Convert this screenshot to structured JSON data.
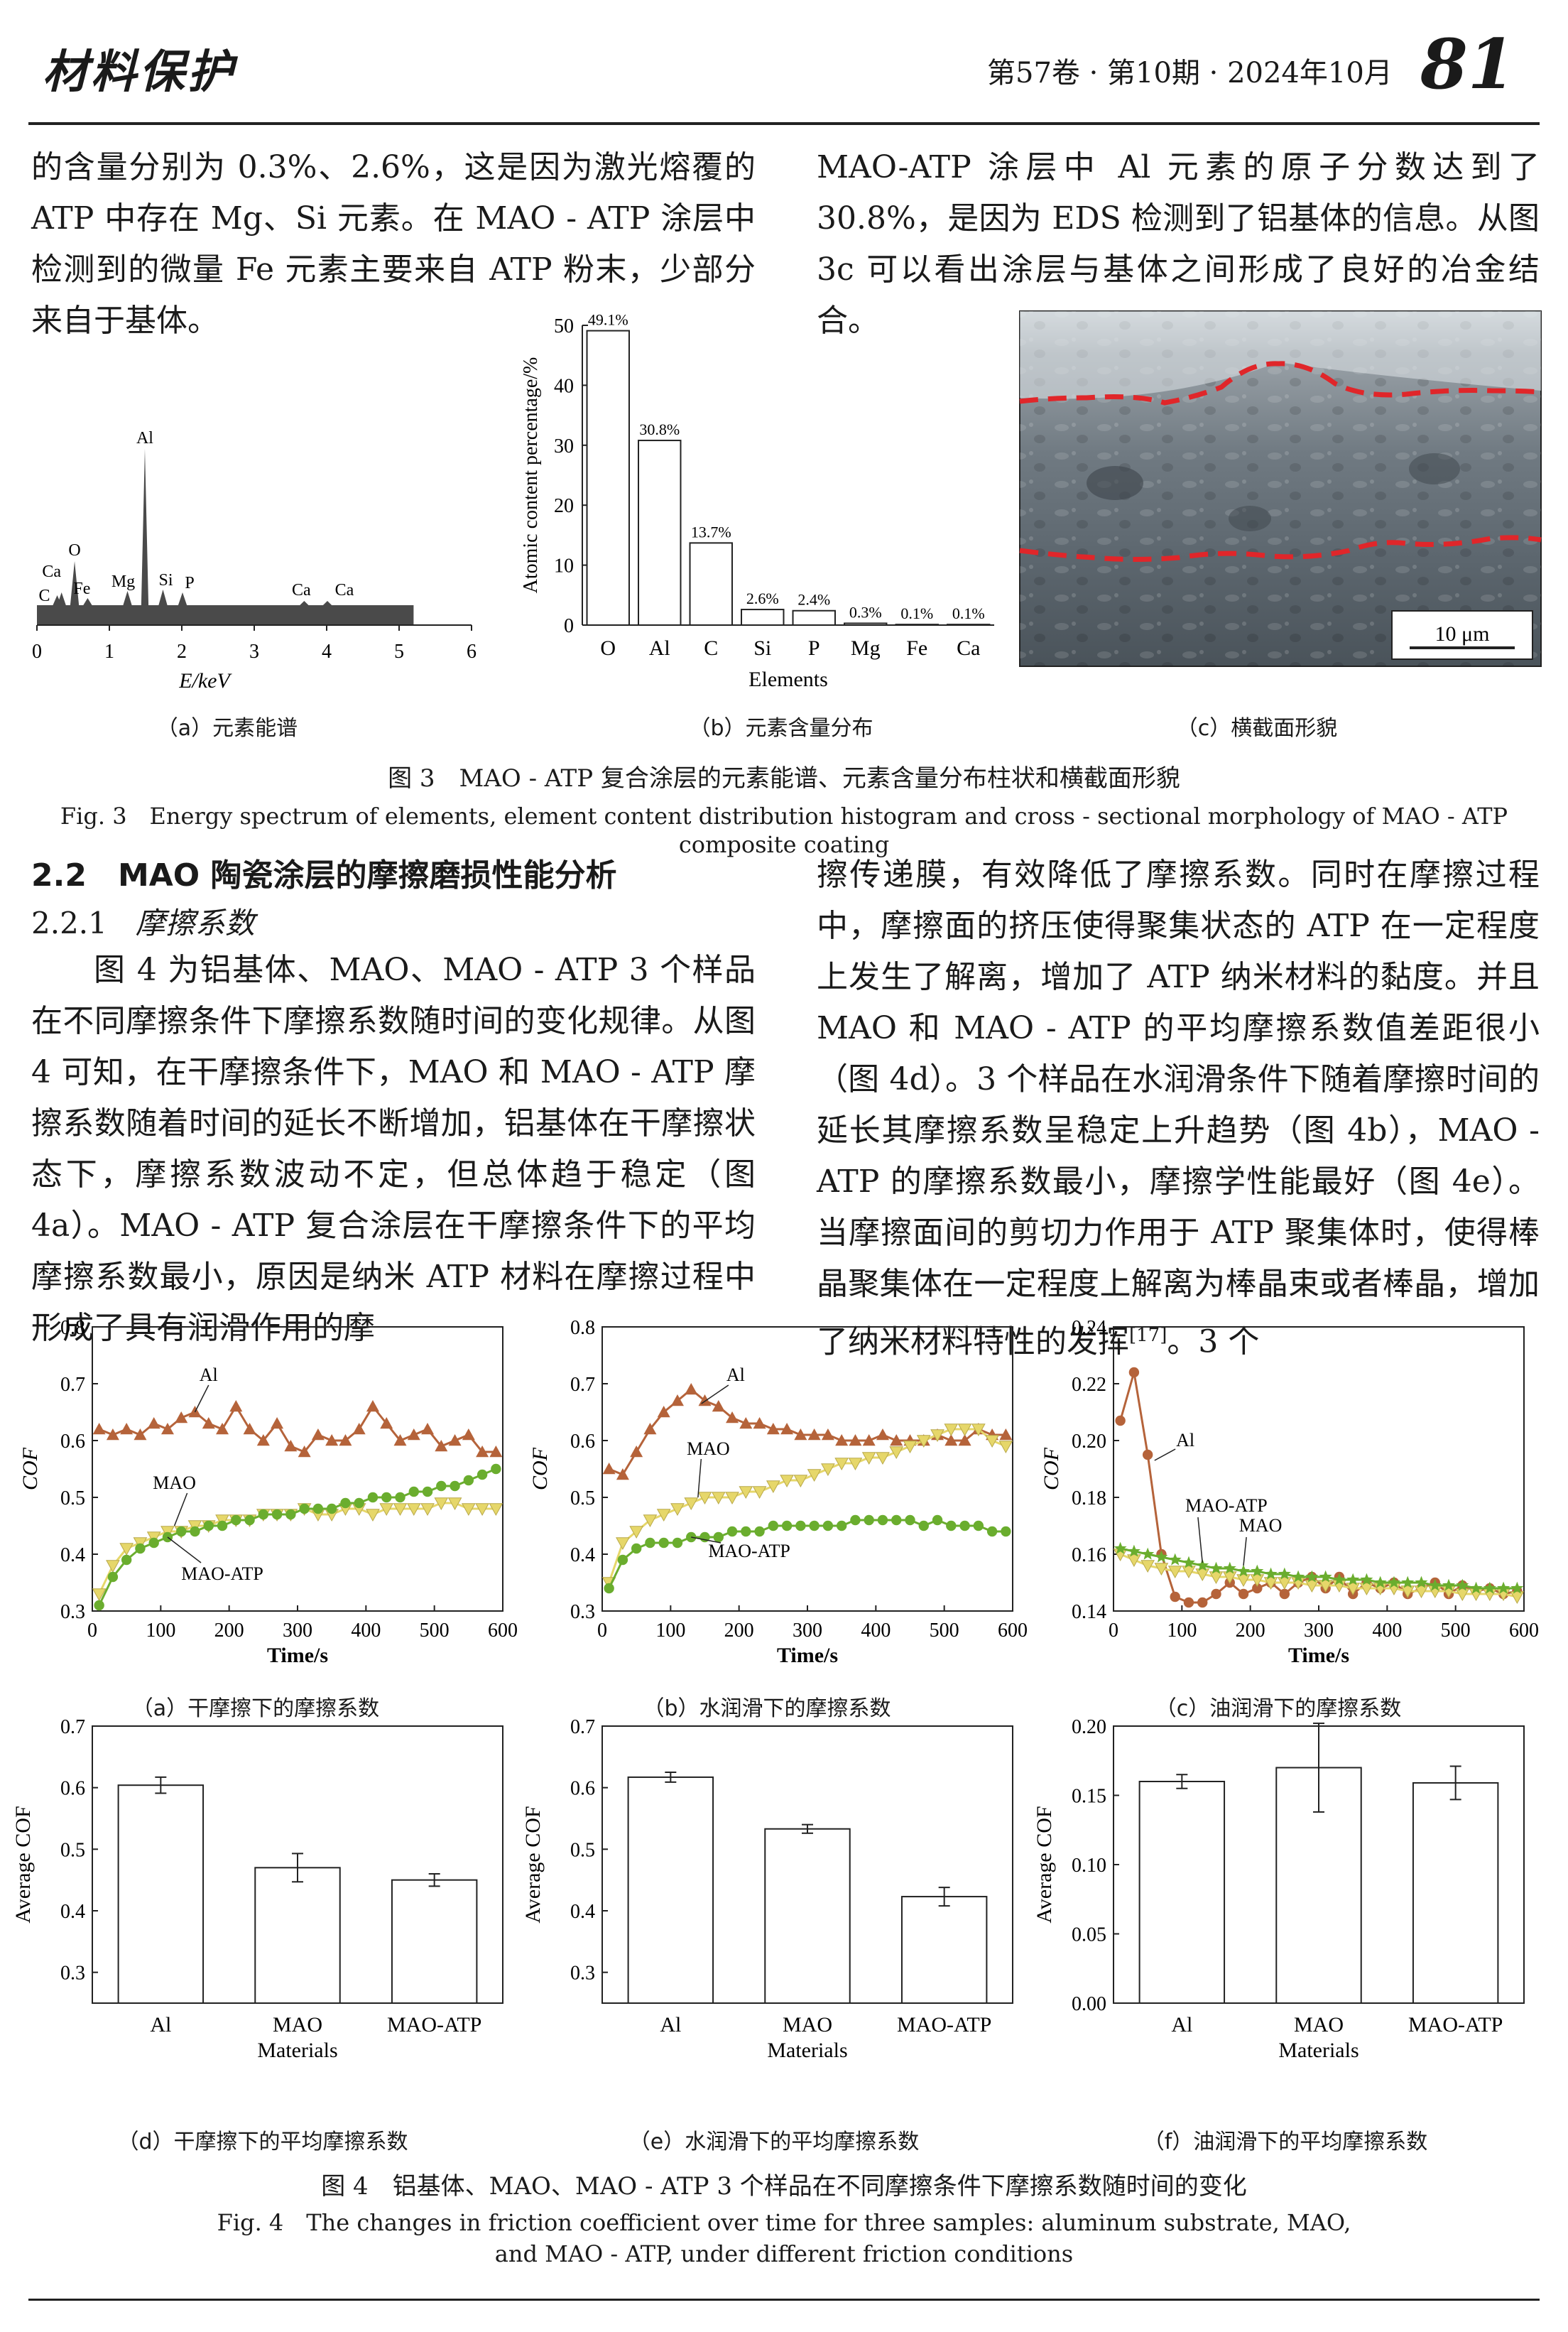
{
  "header": {
    "journal": "材料保护",
    "issue": "第57卷 · 第10期 · 2024年10月",
    "page": "81"
  },
  "top_text": {
    "left": "的含量分别为 0.3%、2.6%，这是因为激光熔覆的 ATP 中存在 Mg、Si 元素。在 MAO - ATP 涂层中检测到的微量 Fe 元素主要来自 ATP 粉末，少部分来自于基体。",
    "right": "MAO-ATP 涂层中 Al 元素的原子分数达到了 30.8%，是因为 EDS 检测到了铝基体的信息。从图 3c 可以看出涂层与基体之间形成了良好的冶金结合。"
  },
  "fig3": {
    "sub_a": "（a）元素能谱",
    "sub_b": "（b）元素含量分布",
    "sub_c": "（c）横截面形貌",
    "caption_cn": "图 3　MAO - ATP 复合涂层的元素能谱、元素含量分布柱状和横截面形貌",
    "caption_en": "Fig. 3　Energy spectrum of elements, element content distribution histogram and cross - sectional morphology of MAO - ATP composite coating",
    "scale_bar": "10 μm"
  },
  "section": {
    "h2": "2.2　MAO 陶瓷涂层的摩擦磨损性能分析",
    "h3_num": "2.2.1",
    "h3_title": "摩擦系数"
  },
  "mid_text": {
    "left": "图 4 为铝基体、MAO、MAO - ATP 3 个样品在不同摩擦条件下摩擦系数随时间的变化规律。从图 4 可知，在干摩擦条件下，MAO 和 MAO - ATP 摩擦系数随着时间的延长不断增加，铝基体在干摩擦状态下，摩擦系数波动不定，但总体趋于稳定（图 4a）。MAO - ATP 复合涂层在干摩擦条件下的平均摩擦系数最小，原因是纳米 ATP 材料在摩擦过程中形成了具有润滑作用的摩",
    "right_a": "擦传递膜，有效降低了摩擦系数。同时在摩擦过程中，摩擦面的挤压使得聚集状态的 ATP 在一定程度上发生了解离，增加了 ATP 纳米材料的黏度。并且 MAO 和 MAO - ATP 的平均摩擦系数值差距很小（图 4d）。3 个样品在水润滑条件下随着摩擦时间的延长其摩擦系数呈稳定上升趋势（图 4b），MAO - ATP 的摩擦系数最小，摩擦学性能最好（图 4e）。当摩擦面间的剪切力作用于 ATP 聚集体时，使得棒晶聚集体在一定程度上解离为棒晶束或者棒晶，增加了纳米材料特性的发挥",
    "right_ref": "[17]",
    "right_b": "。3 个"
  },
  "fig4": {
    "sub": [
      "（a）干摩擦下的摩擦系数",
      "（b）水润滑下的摩擦系数",
      "（c）油润滑下的摩擦系数",
      "（d）干摩擦下的平均摩擦系数",
      "（e）水润滑下的平均摩擦系数",
      "（f）油润滑下的平均摩擦系数"
    ],
    "caption_cn": "图 4　铝基体、MAO、MAO - ATP 3 个样品在不同摩擦条件下摩擦系数随时间的变化",
    "caption_en1": "Fig. 4　The changes in friction coefficient over time for three samples: aluminum substrate, MAO,",
    "caption_en2": "and MAO - ATP, under different friction conditions"
  },
  "chart_data": [
    {
      "id": "fig3a",
      "type": "line",
      "xlabel": "E/keV",
      "xlim": [
        0,
        6
      ],
      "xticks": [
        0,
        1,
        2,
        3,
        4,
        5,
        6
      ],
      "peaks": [
        {
          "x": 0.28,
          "y": 14,
          "label": "C"
        },
        {
          "x": 0.34,
          "y": 18,
          "label": "Ca"
        },
        {
          "x": 0.52,
          "y": 62,
          "label": "O"
        },
        {
          "x": 0.7,
          "y": 10,
          "label": "Fe"
        },
        {
          "x": 1.25,
          "y": 20,
          "label": "Mg"
        },
        {
          "x": 1.49,
          "y": 220,
          "label": "Al"
        },
        {
          "x": 1.74,
          "y": 22,
          "label": "Si"
        },
        {
          "x": 2.01,
          "y": 18,
          "label": "P"
        },
        {
          "x": 3.69,
          "y": 6,
          "label": "Ca"
        },
        {
          "x": 4.01,
          "y": 6,
          "label": "Ca"
        }
      ]
    },
    {
      "id": "fig3b",
      "type": "bar",
      "xlabel": "Elements",
      "ylabel": "Atomic content percentage/%",
      "ylim": [
        0,
        50
      ],
      "yticks": [
        0,
        10,
        20,
        30,
        40,
        50
      ],
      "categories": [
        "O",
        "Al",
        "C",
        "Si",
        "P",
        "Mg",
        "Fe",
        "Ca"
      ],
      "values": [
        49.1,
        30.8,
        13.7,
        2.6,
        2.4,
        0.3,
        0.1,
        0.1
      ],
      "labels": [
        "49.1%",
        "30.8%",
        "13.7%",
        "2.6%",
        "2.4%",
        "0.3%",
        "0.1%",
        "0.1%"
      ]
    },
    {
      "id": "fig4a",
      "type": "line",
      "xlabel": "Time/s",
      "ylabel": "COF",
      "xlim": [
        0,
        600
      ],
      "ylim": [
        0.3,
        0.8
      ],
      "xticks": [
        0,
        100,
        200,
        300,
        400,
        500,
        600
      ],
      "yticks": [
        0.3,
        0.4,
        0.5,
        0.6,
        0.7,
        0.8
      ],
      "series": [
        {
          "name": "Al",
          "color": "#b5633a",
          "marker": "triangle-up",
          "x": [
            10,
            30,
            50,
            70,
            90,
            110,
            130,
            150,
            170,
            190,
            210,
            230,
            250,
            270,
            290,
            310,
            330,
            350,
            370,
            390,
            410,
            430,
            450,
            470,
            490,
            510,
            530,
            550,
            570,
            590
          ],
          "values": [
            0.62,
            0.61,
            0.62,
            0.61,
            0.63,
            0.62,
            0.64,
            0.65,
            0.63,
            0.62,
            0.66,
            0.62,
            0.6,
            0.63,
            0.59,
            0.58,
            0.61,
            0.6,
            0.6,
            0.62,
            0.66,
            0.63,
            0.6,
            0.61,
            0.62,
            0.59,
            0.6,
            0.61,
            0.58,
            0.58
          ]
        },
        {
          "name": "MAO",
          "color": "#e6d76a",
          "marker": "triangle-down",
          "x": [
            10,
            30,
            50,
            70,
            90,
            110,
            130,
            150,
            170,
            190,
            210,
            230,
            250,
            270,
            290,
            310,
            330,
            350,
            370,
            390,
            410,
            430,
            450,
            470,
            490,
            510,
            530,
            550,
            570,
            590
          ],
          "values": [
            0.33,
            0.38,
            0.41,
            0.42,
            0.43,
            0.44,
            0.44,
            0.45,
            0.45,
            0.46,
            0.46,
            0.46,
            0.47,
            0.47,
            0.47,
            0.48,
            0.47,
            0.47,
            0.48,
            0.48,
            0.47,
            0.48,
            0.48,
            0.48,
            0.48,
            0.49,
            0.49,
            0.48,
            0.48,
            0.48
          ]
        },
        {
          "name": "MAO-ATP",
          "color": "#6aad2e",
          "marker": "circle",
          "x": [
            10,
            30,
            50,
            70,
            90,
            110,
            130,
            150,
            170,
            190,
            210,
            230,
            250,
            270,
            290,
            310,
            330,
            350,
            370,
            390,
            410,
            430,
            450,
            470,
            490,
            510,
            530,
            550,
            570,
            590
          ],
          "values": [
            0.31,
            0.36,
            0.39,
            0.41,
            0.42,
            0.43,
            0.44,
            0.44,
            0.45,
            0.45,
            0.46,
            0.46,
            0.47,
            0.47,
            0.47,
            0.48,
            0.48,
            0.48,
            0.49,
            0.49,
            0.5,
            0.5,
            0.5,
            0.51,
            0.51,
            0.52,
            0.52,
            0.53,
            0.54,
            0.55
          ]
        }
      ]
    },
    {
      "id": "fig4b",
      "type": "line",
      "xlabel": "Time/s",
      "ylabel": "COF",
      "xlim": [
        0,
        600
      ],
      "ylim": [
        0.3,
        0.8
      ],
      "xticks": [
        0,
        100,
        200,
        300,
        400,
        500,
        600
      ],
      "yticks": [
        0.3,
        0.4,
        0.5,
        0.6,
        0.7,
        0.8
      ],
      "series": [
        {
          "name": "Al",
          "color": "#b5633a",
          "marker": "triangle-up",
          "x": [
            10,
            30,
            50,
            70,
            90,
            110,
            130,
            150,
            170,
            190,
            210,
            230,
            250,
            270,
            290,
            310,
            330,
            350,
            370,
            390,
            410,
            430,
            450,
            470,
            490,
            510,
            530,
            550,
            570,
            590
          ],
          "values": [
            0.55,
            0.54,
            0.58,
            0.62,
            0.65,
            0.67,
            0.69,
            0.67,
            0.66,
            0.64,
            0.63,
            0.63,
            0.62,
            0.62,
            0.61,
            0.61,
            0.61,
            0.6,
            0.6,
            0.6,
            0.61,
            0.6,
            0.6,
            0.6,
            0.61,
            0.6,
            0.6,
            0.62,
            0.61,
            0.61
          ]
        },
        {
          "name": "MAO",
          "color": "#e6d76a",
          "marker": "triangle-down",
          "x": [
            10,
            30,
            50,
            70,
            90,
            110,
            130,
            150,
            170,
            190,
            210,
            230,
            250,
            270,
            290,
            310,
            330,
            350,
            370,
            390,
            410,
            430,
            450,
            470,
            490,
            510,
            530,
            550,
            570,
            590
          ],
          "values": [
            0.35,
            0.42,
            0.44,
            0.46,
            0.47,
            0.48,
            0.49,
            0.5,
            0.5,
            0.5,
            0.51,
            0.51,
            0.52,
            0.53,
            0.53,
            0.54,
            0.55,
            0.56,
            0.56,
            0.57,
            0.57,
            0.58,
            0.59,
            0.6,
            0.61,
            0.62,
            0.62,
            0.62,
            0.6,
            0.59
          ]
        },
        {
          "name": "MAO-ATP",
          "color": "#6aad2e",
          "marker": "circle",
          "x": [
            10,
            30,
            50,
            70,
            90,
            110,
            130,
            150,
            170,
            190,
            210,
            230,
            250,
            270,
            290,
            310,
            330,
            350,
            370,
            390,
            410,
            430,
            450,
            470,
            490,
            510,
            530,
            550,
            570,
            590
          ],
          "values": [
            0.34,
            0.39,
            0.41,
            0.42,
            0.42,
            0.42,
            0.43,
            0.43,
            0.43,
            0.44,
            0.44,
            0.44,
            0.45,
            0.45,
            0.45,
            0.45,
            0.45,
            0.45,
            0.46,
            0.46,
            0.46,
            0.46,
            0.46,
            0.45,
            0.46,
            0.45,
            0.45,
            0.45,
            0.44,
            0.44
          ]
        }
      ]
    },
    {
      "id": "fig4c",
      "type": "line",
      "xlabel": "Time/s",
      "ylabel": "COF",
      "xlim": [
        0,
        600
      ],
      "ylim": [
        0.14,
        0.24
      ],
      "xticks": [
        0,
        100,
        200,
        300,
        400,
        500,
        600
      ],
      "yticks": [
        0.14,
        0.16,
        0.18,
        0.2,
        0.22,
        0.24
      ],
      "series": [
        {
          "name": "Al",
          "color": "#b5633a",
          "marker": "circle",
          "x": [
            10,
            30,
            50,
            70,
            90,
            110,
            130,
            150,
            170,
            190,
            210,
            230,
            250,
            270,
            290,
            310,
            330,
            350,
            370,
            390,
            410,
            430,
            450,
            470,
            490,
            510,
            530,
            550,
            570,
            590
          ],
          "values": [
            0.207,
            0.224,
            0.195,
            0.16,
            0.145,
            0.143,
            0.143,
            0.146,
            0.15,
            0.146,
            0.148,
            0.15,
            0.146,
            0.15,
            0.152,
            0.148,
            0.152,
            0.146,
            0.15,
            0.148,
            0.15,
            0.146,
            0.148,
            0.15,
            0.146,
            0.149,
            0.147,
            0.148,
            0.146,
            0.147
          ]
        },
        {
          "name": "MAO",
          "color": "#e6d76a",
          "marker": "triangle-down",
          "x": [
            10,
            30,
            50,
            70,
            90,
            110,
            130,
            150,
            170,
            190,
            210,
            230,
            250,
            270,
            290,
            310,
            330,
            350,
            370,
            390,
            410,
            430,
            450,
            470,
            490,
            510,
            530,
            550,
            570,
            590
          ],
          "values": [
            0.16,
            0.158,
            0.156,
            0.155,
            0.154,
            0.154,
            0.153,
            0.152,
            0.152,
            0.151,
            0.151,
            0.15,
            0.15,
            0.15,
            0.149,
            0.149,
            0.149,
            0.148,
            0.148,
            0.148,
            0.148,
            0.147,
            0.147,
            0.147,
            0.147,
            0.146,
            0.146,
            0.146,
            0.146,
            0.145
          ]
        },
        {
          "name": "MAO-ATP",
          "color": "#6aad2e",
          "marker": "star",
          "x": [
            10,
            30,
            50,
            70,
            90,
            110,
            130,
            150,
            170,
            190,
            210,
            230,
            250,
            270,
            290,
            310,
            330,
            350,
            370,
            390,
            410,
            430,
            450,
            470,
            490,
            510,
            530,
            550,
            570,
            590
          ],
          "values": [
            0.162,
            0.161,
            0.16,
            0.159,
            0.158,
            0.157,
            0.156,
            0.155,
            0.155,
            0.154,
            0.154,
            0.153,
            0.153,
            0.152,
            0.152,
            0.152,
            0.151,
            0.151,
            0.151,
            0.15,
            0.15,
            0.15,
            0.15,
            0.149,
            0.149,
            0.149,
            0.148,
            0.148,
            0.148,
            0.148
          ]
        }
      ]
    },
    {
      "id": "fig4d",
      "type": "bar",
      "xlabel": "Materials",
      "ylabel": "Average COF",
      "ylim": [
        0.25,
        0.7
      ],
      "yticks": [
        0.3,
        0.4,
        0.5,
        0.6,
        0.7
      ],
      "categories": [
        "Al",
        "MAO",
        "MAO-ATP"
      ],
      "values": [
        0.604,
        0.47,
        0.45
      ],
      "errors": [
        0.013,
        0.023,
        0.01
      ]
    },
    {
      "id": "fig4e",
      "type": "bar",
      "xlabel": "Materials",
      "ylabel": "Average COF",
      "ylim": [
        0.25,
        0.7
      ],
      "yticks": [
        0.3,
        0.4,
        0.5,
        0.6,
        0.7
      ],
      "categories": [
        "Al",
        "MAO",
        "MAO-ATP"
      ],
      "values": [
        0.617,
        0.533,
        0.423
      ],
      "errors": [
        0.008,
        0.007,
        0.015
      ]
    },
    {
      "id": "fig4f",
      "type": "bar",
      "xlabel": "Materials",
      "ylabel": "Average COF",
      "ylim": [
        0,
        0.2
      ],
      "yticks": [
        0,
        0.05,
        0.1,
        0.15,
        0.2
      ],
      "categories": [
        "Al",
        "MAO",
        "MAO-ATP"
      ],
      "values": [
        0.16,
        0.17,
        0.159
      ],
      "errors": [
        0.005,
        0.032,
        0.012
      ]
    }
  ]
}
